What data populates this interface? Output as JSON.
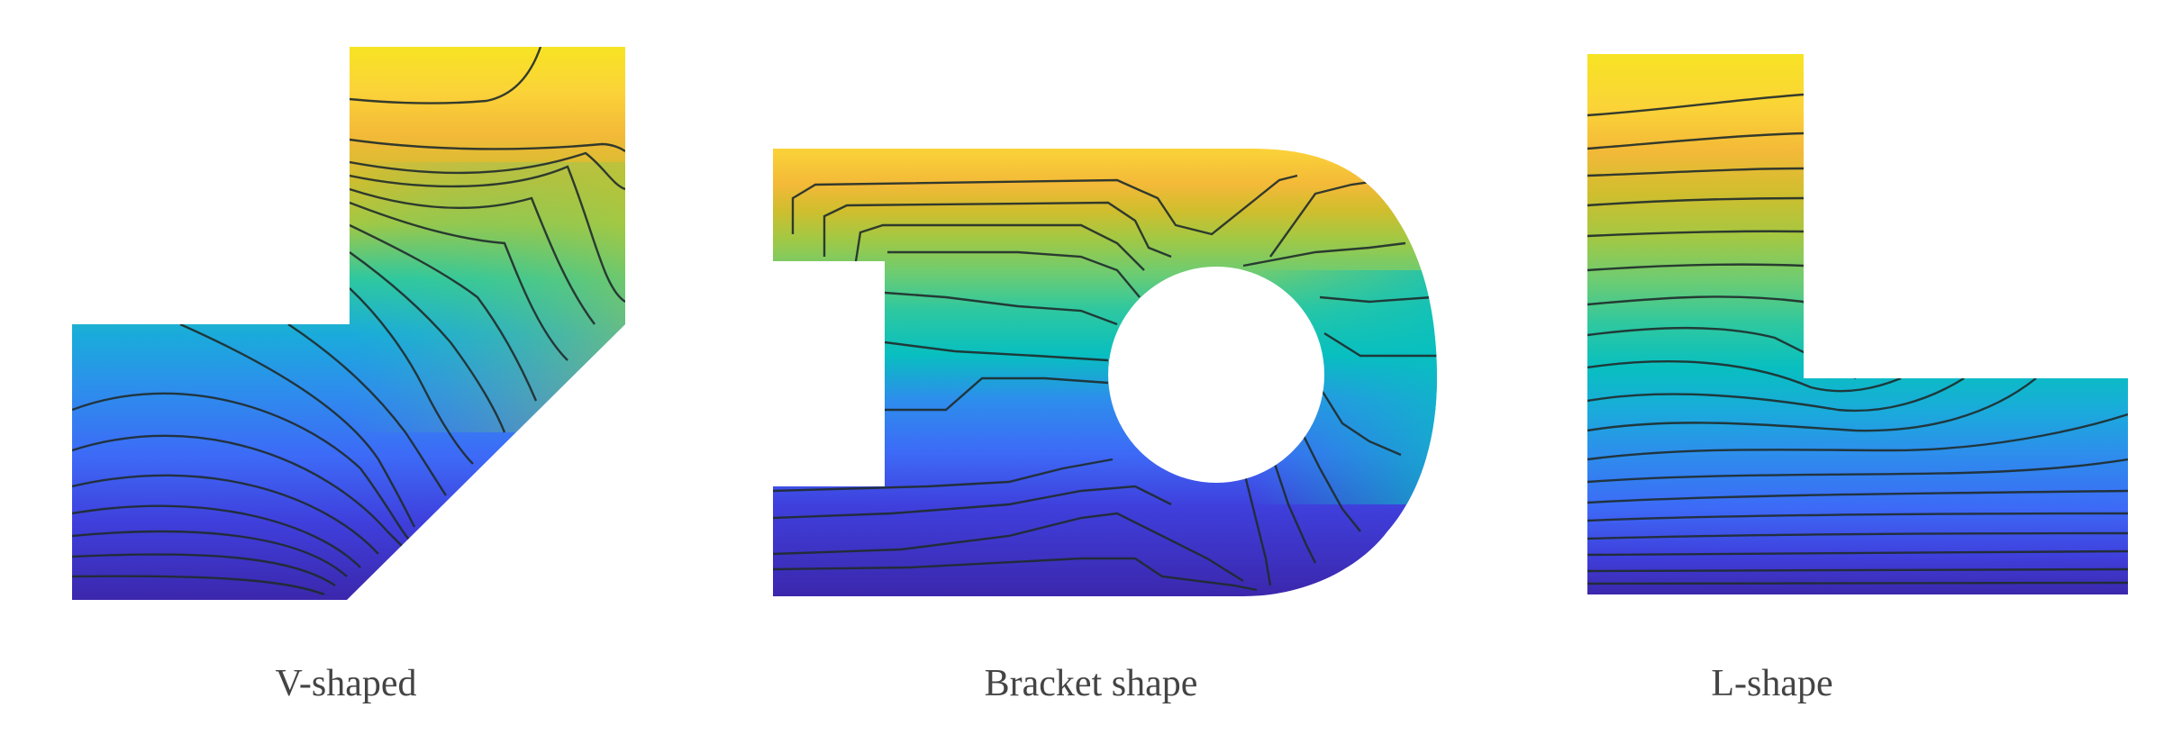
{
  "figure": {
    "panels": [
      {
        "caption": "V-shaped"
      },
      {
        "caption": "Bracket shape"
      },
      {
        "caption": "L-shape"
      }
    ]
  },
  "colors": {
    "colormap": [
      "#3b27ac",
      "#3f3fdc",
      "#3d6af7",
      "#2d8eec",
      "#1aabdb",
      "#08bfc0",
      "#2ec8a0",
      "#6ccc73",
      "#a3c843",
      "#cfbe2e",
      "#f3b938",
      "#fbd338",
      "#f7e424"
    ],
    "contour_lines": "#1f2b2b",
    "caption_text": "#444444",
    "background": "#ffffff"
  }
}
